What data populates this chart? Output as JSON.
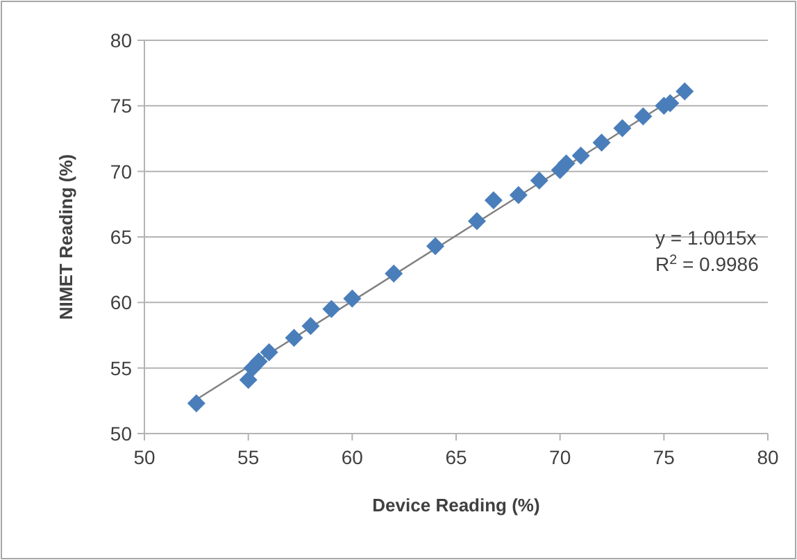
{
  "chart_data": {
    "type": "scatter",
    "xlabel": "Device Reading (%)",
    "ylabel": "NIMET Reading (%)",
    "xlim": [
      50,
      80
    ],
    "xticks": [
      50,
      55,
      60,
      65,
      70,
      75,
      80
    ],
    "ylim": [
      50,
      80
    ],
    "yticks": [
      50,
      55,
      60,
      65,
      70,
      75,
      80
    ],
    "grid": "y",
    "annotations": [
      "y = 1.0015x",
      "R$^{2}$ = 0.9986"
    ],
    "series": [
      {
        "marker": "diamond",
        "color": "#4a7ebb",
        "x": [
          52.5,
          55,
          55.2,
          55.5,
          56,
          57.2,
          58,
          59,
          60,
          62,
          64,
          66,
          66.8,
          68,
          69,
          70,
          70.3,
          71,
          72,
          73,
          74,
          75,
          75.3,
          76
        ],
        "values": [
          52.3,
          54.1,
          55,
          55.5,
          56.2,
          57.3,
          58.2,
          59.5,
          60.3,
          62.2,
          64.3,
          66.2,
          67.8,
          68.2,
          69.3,
          70.1,
          70.6,
          71.2,
          72.2,
          73.3,
          74.2,
          75,
          75.2,
          76.1
        ]
      },
      {
        "type": "line",
        "marker": "none",
        "color": "#7f7f7f",
        "x": [
          52.5,
          76
        ],
        "values": [
          52.6,
          76.1
        ]
      }
    ]
  }
}
